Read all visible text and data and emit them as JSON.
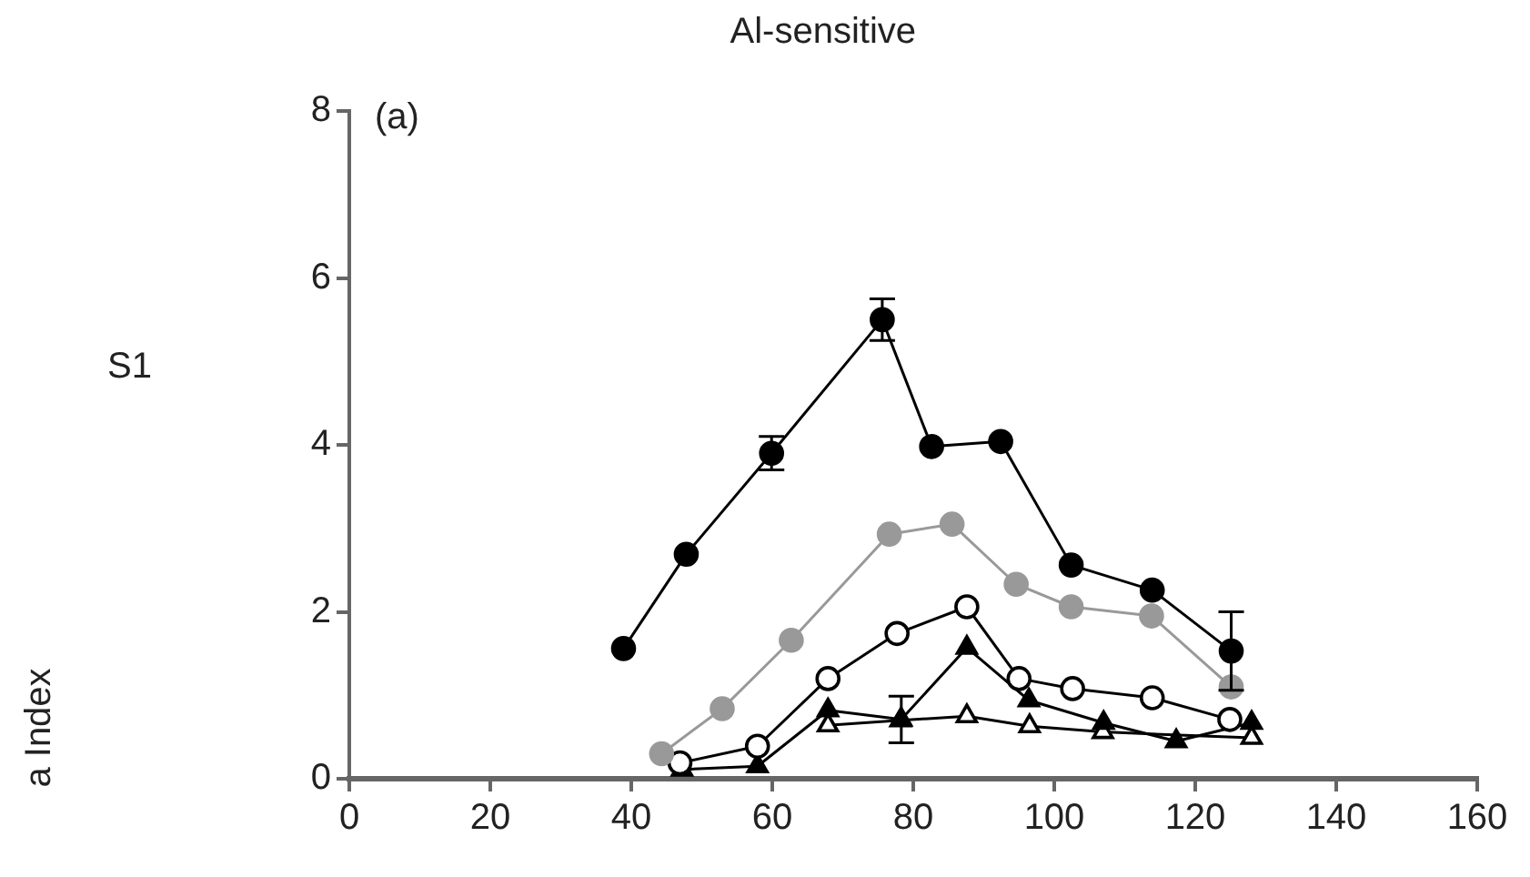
{
  "chart_data": {
    "type": "line",
    "title": "Al-sensitive",
    "annotations": [
      "(a)",
      "S1",
      "a Index"
    ],
    "xlim": [
      0,
      160
    ],
    "xticks": [
      0,
      20,
      40,
      60,
      80,
      100,
      120,
      140,
      160
    ],
    "ylim": [
      0,
      8
    ],
    "yticks": [
      0,
      2,
      4,
      6,
      8
    ],
    "grid": false,
    "legend": false,
    "line_style": "solid",
    "series": [
      {
        "color": "#000000",
        "marker": "circle",
        "x": [
          38.9,
          47.8,
          59.9,
          75.6,
          82.6,
          92.4,
          102.4,
          113.9,
          125.1
        ],
        "values": [
          1.56,
          2.69,
          3.9,
          5.5,
          3.98,
          4.04,
          2.56,
          2.26,
          1.53
        ],
        "errors": [
          null,
          null,
          0.2,
          0.25,
          null,
          null,
          null,
          null,
          0.47
        ]
      },
      {
        "color": "#999999",
        "marker": "circle",
        "x": [
          44.3,
          52.9,
          62.7,
          76.6,
          85.5,
          94.6,
          102.4,
          113.8,
          125.1
        ],
        "values": [
          0.3,
          0.84,
          1.66,
          2.93,
          3.05,
          2.33,
          2.06,
          1.95,
          1.1
        ]
      },
      {
        "color": "#ffffff",
        "marker": "circle",
        "x": [
          46.9,
          57.9,
          67.9,
          77.7,
          87.6,
          95.0,
          102.6,
          113.9,
          124.9
        ],
        "values": [
          0.19,
          0.39,
          1.2,
          1.74,
          2.06,
          1.2,
          1.08,
          0.97,
          0.71
        ]
      },
      {
        "color": "#000000",
        "marker": "triangle",
        "x": [
          47.2,
          57.9,
          67.9,
          78.3,
          87.6,
          96.4,
          107.0,
          117.3,
          128.0
        ],
        "values": [
          0.11,
          0.15,
          0.82,
          0.71,
          1.57,
          0.94,
          0.67,
          0.45,
          0.67
        ],
        "errors": [
          null,
          null,
          null,
          0.28,
          null,
          null,
          null,
          null,
          null
        ]
      },
      {
        "color": "#ffffff",
        "marker": "triangle",
        "x": [
          67.9,
          78.2,
          87.6,
          96.5,
          106.9,
          128.0
        ],
        "values": [
          0.64,
          0.7,
          0.75,
          0.63,
          0.56,
          0.49
        ]
      }
    ]
  }
}
